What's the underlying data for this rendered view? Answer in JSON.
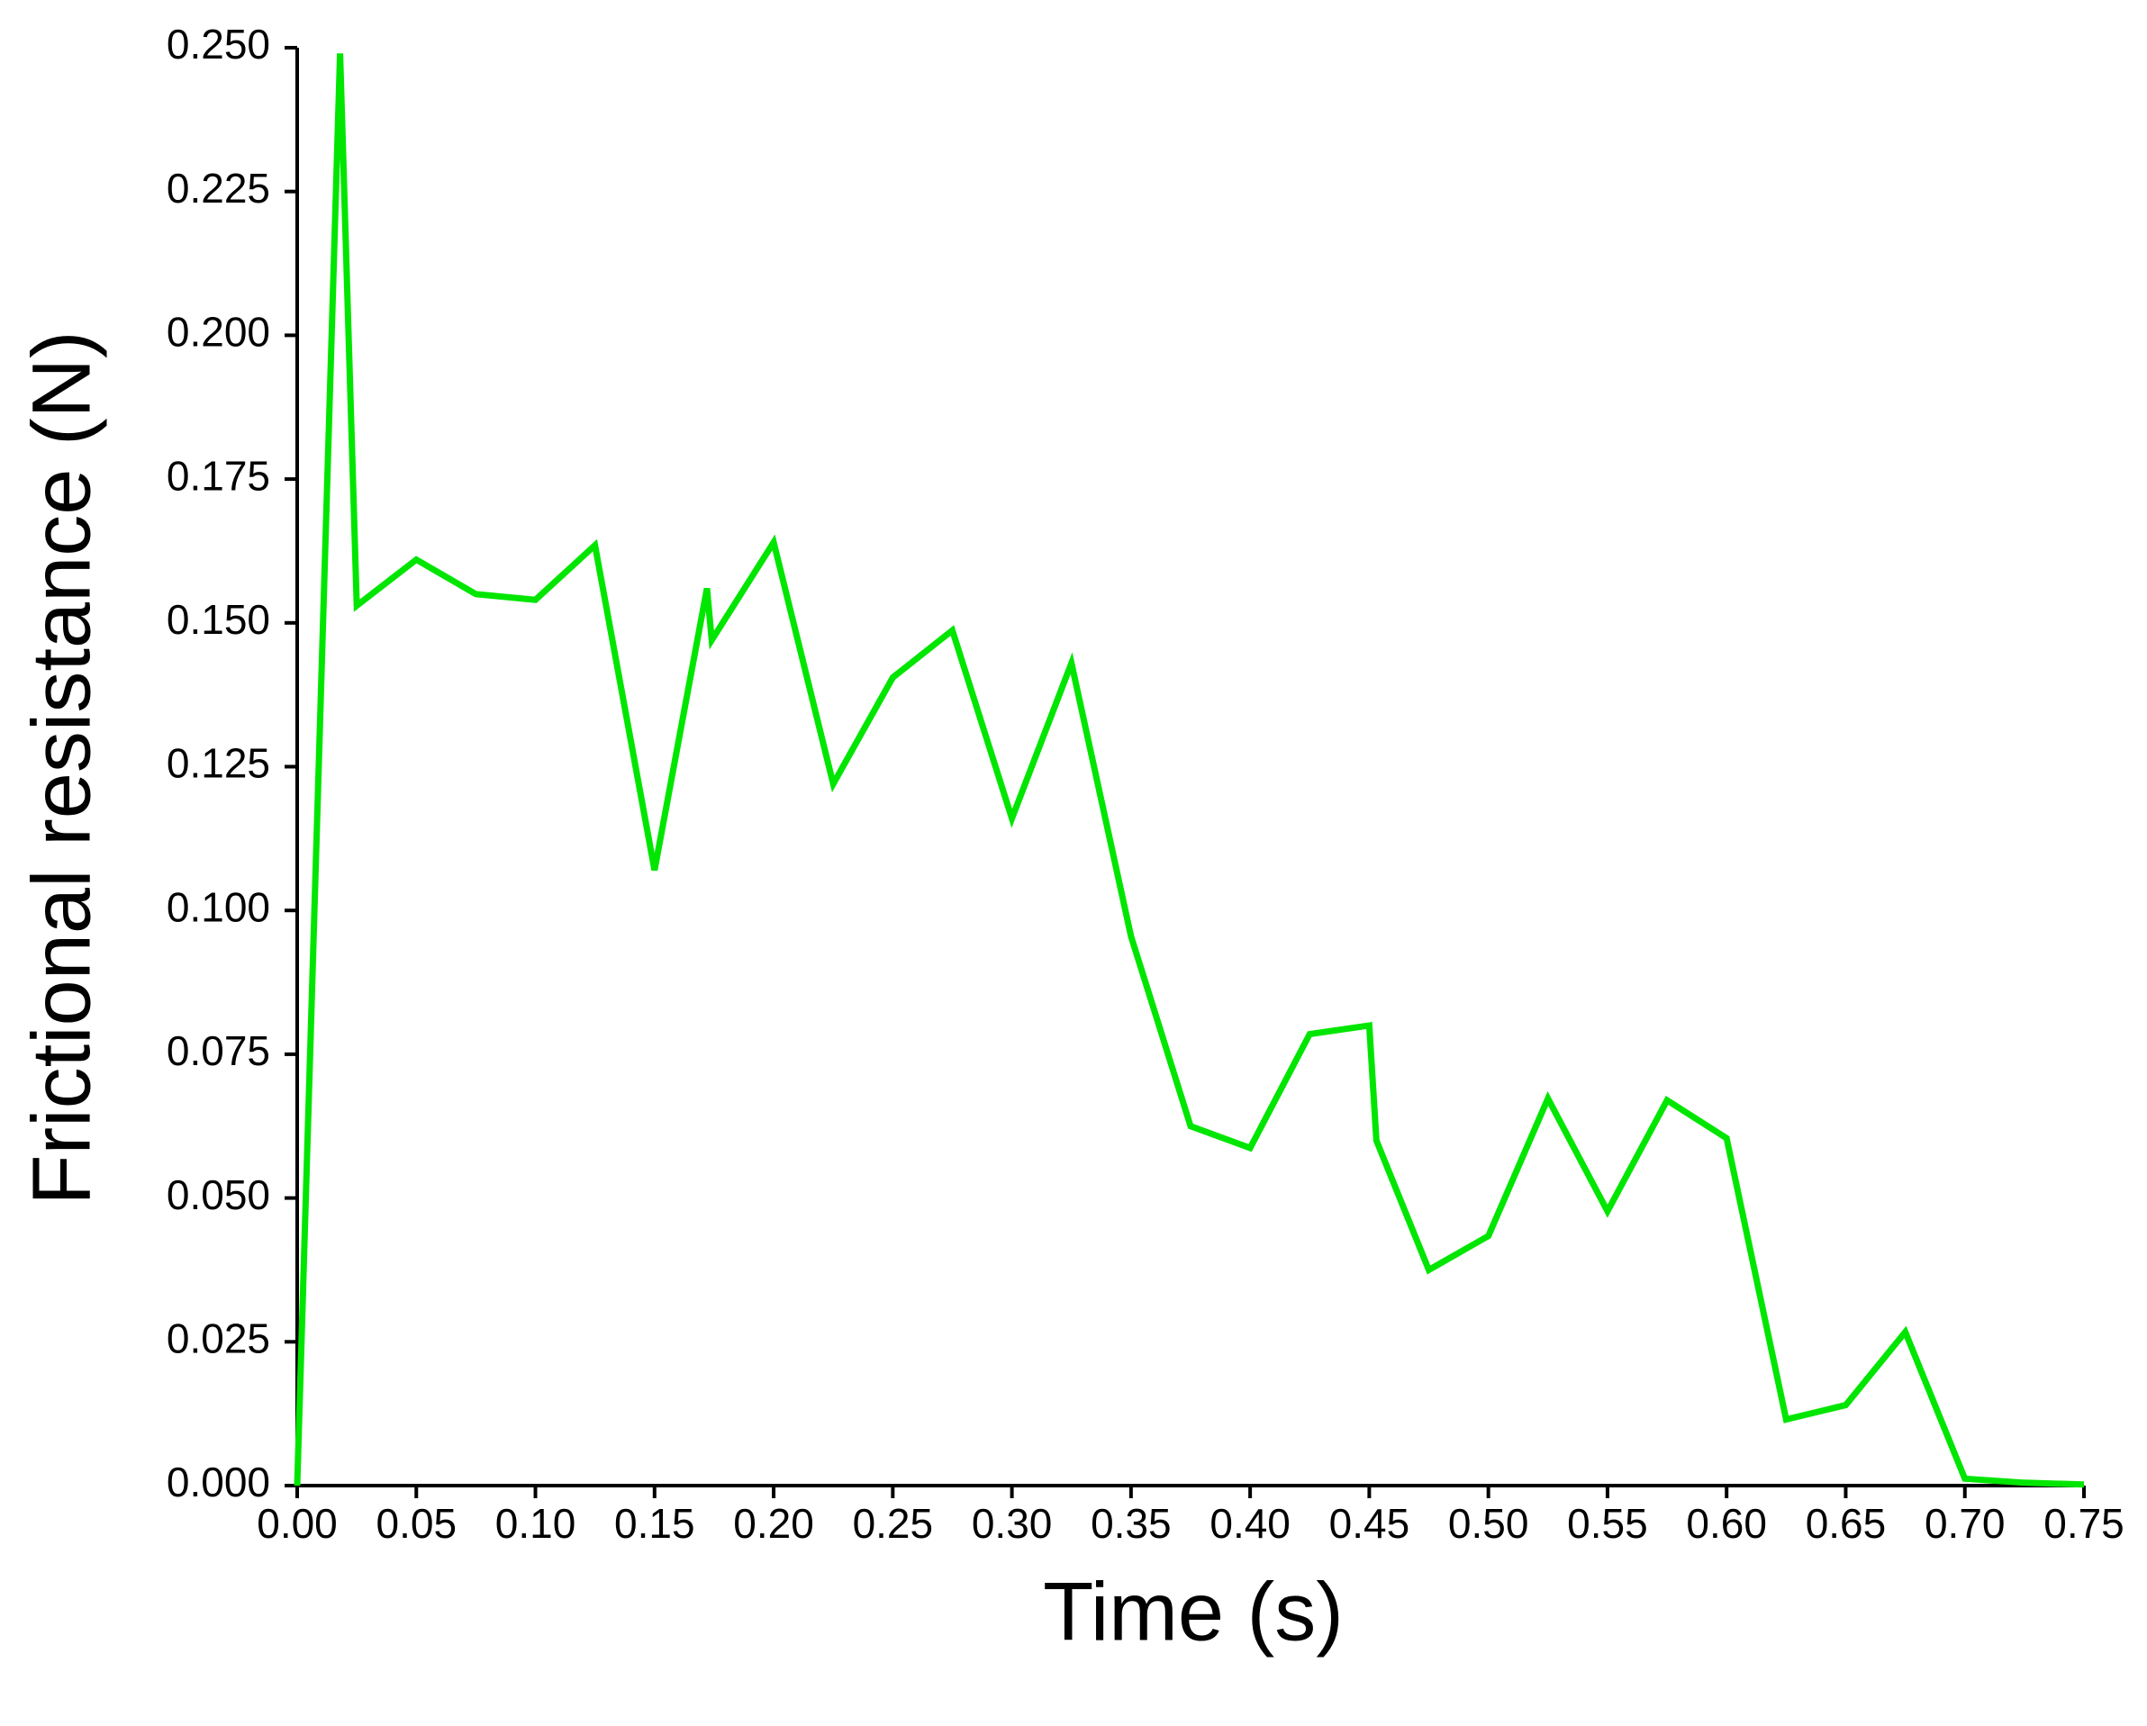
{
  "chart_data": {
    "type": "line",
    "x_label": "Time (s)",
    "y_label": "Frictional resistance  (N)",
    "x": [
      0,
      0.018,
      0.025,
      0.05,
      0.075,
      0.1,
      0.125,
      0.15,
      0.172,
      0.174,
      0.2,
      0.225,
      0.25,
      0.275,
      0.3,
      0.325,
      0.35,
      0.375,
      0.4,
      0.425,
      0.45,
      0.453,
      0.475,
      0.5,
      0.525,
      0.55,
      0.575,
      0.6,
      0.625,
      0.65,
      0.675,
      0.7,
      0.725,
      0.75
    ],
    "series": [
      {
        "color": "#00e600",
        "values": [
          0,
          0.249,
          0.153,
          0.161,
          0.155,
          0.154,
          0.1635,
          0.107,
          0.156,
          0.147,
          0.164,
          0.122,
          0.1405,
          0.1487,
          0.116,
          0.143,
          0.0955,
          0.0625,
          0.0587,
          0.0785,
          0.08,
          0.06,
          0.0375,
          0.0434,
          0.0673,
          0.0477,
          0.067,
          0.0604,
          0.0115,
          0.014,
          0.0267,
          0.0012,
          0.0005,
          0.0002
        ]
      }
    ],
    "xlim": [
      0,
      0.75
    ],
    "ylim": [
      0,
      0.25
    ],
    "xticks": [
      {
        "value": 0,
        "label": "0.00"
      },
      0.05,
      {
        "value": 0.1,
        "label": "0.10"
      },
      0.15,
      {
        "value": 0.2,
        "label": "0.20"
      },
      0.25,
      {
        "value": 0.3,
        "label": "0.30"
      },
      0.35,
      {
        "value": 0.4,
        "label": "0.40"
      },
      0.45,
      {
        "value": 0.5,
        "label": "0.50"
      },
      0.55,
      {
        "value": 0.6,
        "label": "0.60"
      },
      0.65,
      {
        "value": 0.7,
        "label": "0.70"
      },
      0.75
    ],
    "yticks": [
      {
        "value": 0,
        "label": "0.000"
      },
      0.025,
      {
        "value": 0.05,
        "label": "0.050"
      },
      0.075,
      {
        "value": 0.1,
        "label": "0.100"
      },
      0.125,
      {
        "value": 0.15,
        "label": "0.150"
      },
      0.175,
      {
        "value": 0.2,
        "label": "0.200"
      },
      0.225,
      {
        "value": 0.25,
        "label": "0.250"
      }
    ],
    "grid": false
  }
}
